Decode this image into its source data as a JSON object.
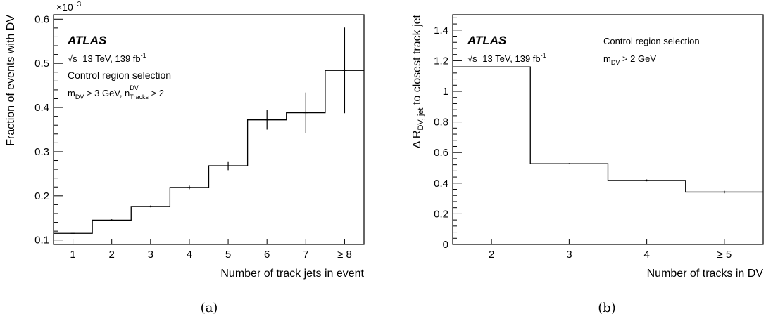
{
  "chart_data": [
    {
      "type": "histogram-step",
      "id": "a",
      "caption": "(a)",
      "categories": [
        "1",
        "2",
        "3",
        "4",
        "5",
        "6",
        "7",
        "≥ 8"
      ],
      "values": [
        0.115,
        0.145,
        0.176,
        0.219,
        0.268,
        0.372,
        0.388,
        0.484
      ],
      "errors_low": [
        0.001,
        0.002,
        0.002,
        0.004,
        0.01,
        0.022,
        0.046,
        0.097
      ],
      "errors_high": [
        0.001,
        0.002,
        0.002,
        0.004,
        0.01,
        0.022,
        0.046,
        0.097
      ],
      "ylim": [
        0.09,
        0.61
      ],
      "yticks": [
        0.1,
        0.2,
        0.3,
        0.4,
        0.5,
        0.6
      ],
      "ytick_labels": [
        "0.1",
        "0.2",
        "0.3",
        "0.4",
        "0.5",
        "0.6"
      ],
      "y_multiplier": "×10",
      "y_multiplier_exp": "−3",
      "xlabel": "Number of track jets in event",
      "ylabel": "Fraction of events with DV",
      "annotations": {
        "experiment": "ATLAS",
        "energy_prefix": "√s=13 TeV, 139 fb",
        "energy_sup": "-1",
        "line3": "Control region selection",
        "cut_m": "m",
        "cut_m_sub": "DV",
        "cut_m_rest": " > 3 GeV, n",
        "cut_n_sup": "DV",
        "cut_n_sub": "Tracks",
        "cut_n_rest": " > 2"
      }
    },
    {
      "type": "histogram-step",
      "id": "b",
      "caption": "(b)",
      "categories": [
        "2",
        "3",
        "4",
        "≥ 5"
      ],
      "values": [
        1.16,
        0.527,
        0.418,
        0.342
      ],
      "errors_low": [
        0.003,
        0.004,
        0.006,
        0.008
      ],
      "errors_high": [
        0.003,
        0.004,
        0.006,
        0.008
      ],
      "ylim": [
        0,
        1.5
      ],
      "yticks": [
        0,
        0.2,
        0.4,
        0.6,
        0.8,
        1.0,
        1.2,
        1.4
      ],
      "ytick_labels": [
        "0",
        "0.2",
        "0.4",
        "0.6",
        "0.8",
        "1",
        "1.2",
        "1.4"
      ],
      "xlabel": "Number of tracks in DV",
      "ylabel_prefix": "Δ R",
      "ylabel_sub": "DV, jet",
      "ylabel_suffix": " to closest track jet",
      "annotations": {
        "experiment": "ATLAS",
        "energy_prefix": "√s=13 TeV, 139 fb",
        "energy_sup": "-1",
        "right_line1": "Control region selection",
        "right_cut_m": "m",
        "right_cut_m_sub": "DV",
        "right_cut_rest": " > 2 GeV"
      }
    }
  ]
}
